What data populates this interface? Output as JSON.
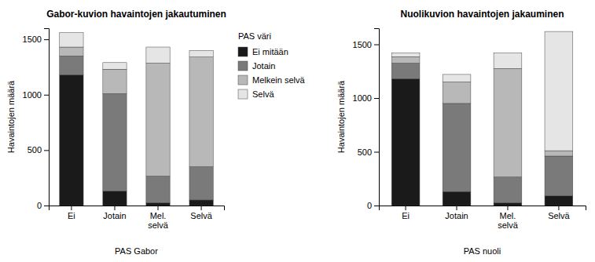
{
  "chart_data": [
    {
      "type": "bar",
      "stacked": true,
      "title": "Gabor-kuvion havaintojen jakautuminen",
      "xlabel": "PAS  Gabor",
      "ylabel": "Havaintojen määrä",
      "categories": [
        "Ei",
        "Jotain",
        "Mel.\nselvä",
        "Selvä"
      ],
      "series": [
        {
          "name": "Ei mitään",
          "color": "#1a1a1a",
          "values": [
            1180,
            130,
            25,
            50
          ]
        },
        {
          "name": "Jotain",
          "color": "#7a7a7a",
          "values": [
            170,
            880,
            240,
            300
          ]
        },
        {
          "name": "Melkein selvä",
          "color": "#b8b8b8",
          "values": [
            80,
            220,
            1020,
            990
          ]
        },
        {
          "name": "Selvä",
          "color": "#e5e5e5",
          "values": [
            130,
            60,
            145,
            60
          ]
        }
      ],
      "ylim": [
        0,
        1600
      ],
      "yticks": [
        0,
        500,
        1000,
        1500
      ],
      "legend": "right",
      "legend_title": "PAS väri"
    },
    {
      "type": "bar",
      "stacked": true,
      "title": "Nuolikuvion havaintojen jakauminen",
      "xlabel": "PAS nuoli",
      "ylabel": "Havaintojen määrä",
      "categories": [
        "Ei",
        "Jotain",
        "Mel.\nselvä",
        "Selvä"
      ],
      "series": [
        {
          "name": "Ei mitään",
          "color": "#1a1a1a",
          "values": [
            1180,
            130,
            25,
            90
          ]
        },
        {
          "name": "Jotain",
          "color": "#7a7a7a",
          "values": [
            145,
            820,
            240,
            370
          ]
        },
        {
          "name": "Melkein selvä",
          "color": "#b8b8b8",
          "values": [
            60,
            200,
            1010,
            50
          ]
        },
        {
          "name": "Selvä",
          "color": "#e5e5e5",
          "values": [
            35,
            70,
            145,
            1110
          ]
        }
      ],
      "ylim": [
        0,
        1650
      ],
      "yticks": [
        0,
        500,
        1000,
        1500
      ]
    }
  ]
}
